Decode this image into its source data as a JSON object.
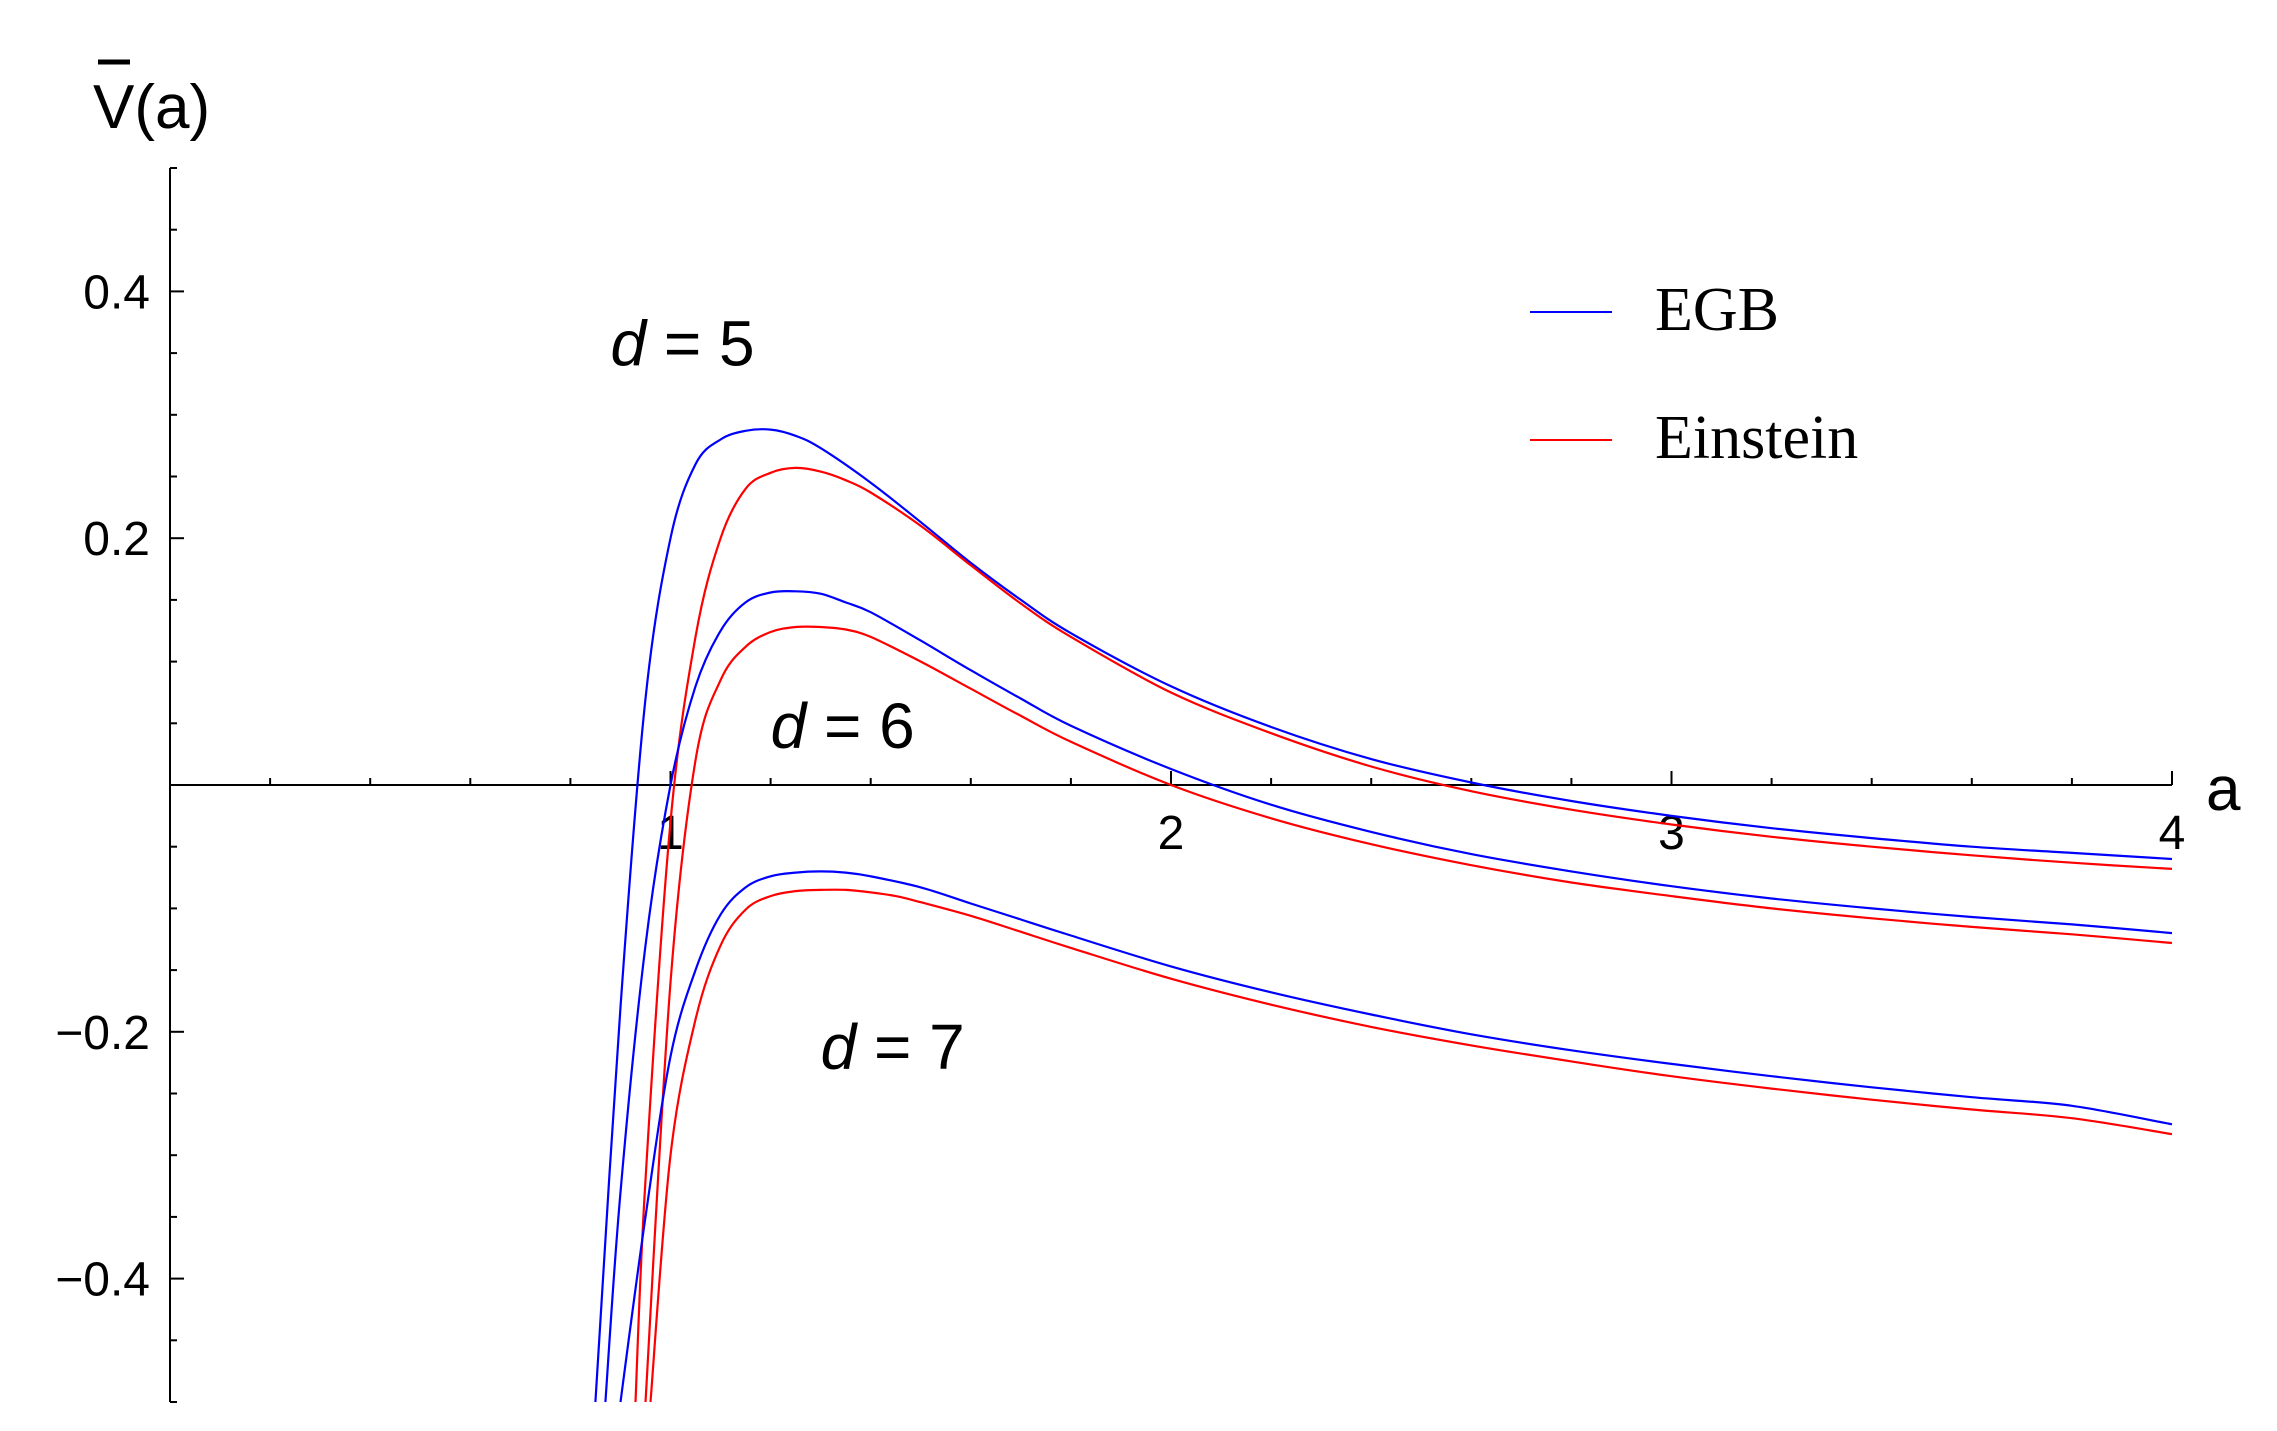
{
  "chart_data": {
    "type": "line",
    "xlabel": "a",
    "ylabel": "V(a)",
    "xlim": [
      0,
      4
    ],
    "ylim": [
      -0.5,
      0.5
    ],
    "grid": false,
    "legend_position": "top-right",
    "x_ticks": [
      {
        "value": 1,
        "label": "1"
      },
      {
        "value": 2,
        "label": "2"
      },
      {
        "value": 3,
        "label": "3"
      },
      {
        "value": 4,
        "label": "4"
      }
    ],
    "y_ticks": [
      {
        "value": 0.4,
        "label": "0.4"
      },
      {
        "value": 0.2,
        "label": "0.2"
      },
      {
        "value": -0.2,
        "label": "−0.2"
      },
      {
        "value": -0.4,
        "label": "−0.4"
      }
    ],
    "annotations": [
      {
        "var": "d",
        "text": " = 5",
        "x": 0.88,
        "y": 0.34
      },
      {
        "var": "d",
        "text": " = 6",
        "x": 1.2,
        "y": 0.03
      },
      {
        "var": "d",
        "text": " = 7",
        "x": 1.3,
        "y": -0.23
      }
    ],
    "legend": [
      {
        "label": "EGB",
        "color": "#0000ff"
      },
      {
        "label": "Einstein",
        "color": "#ff0000"
      }
    ],
    "series": [
      {
        "name": "EGB",
        "d": 5,
        "color": "#0000ff",
        "x": [
          0.85,
          0.9,
          0.95,
          1.0,
          1.05,
          1.1,
          1.15,
          1.2,
          1.25,
          1.3,
          1.4,
          1.5,
          1.6,
          1.7,
          1.8,
          2.0,
          2.2,
          2.4,
          2.6,
          2.8,
          3.0,
          3.2,
          3.4,
          3.6,
          3.8,
          4.0
        ],
        "y": [
          -0.5,
          -0.18,
          0.07,
          0.2,
          0.26,
          0.28,
          0.287,
          0.288,
          0.283,
          0.273,
          0.245,
          0.213,
          0.18,
          0.15,
          0.123,
          0.08,
          0.047,
          0.021,
          0.002,
          -0.013,
          -0.025,
          -0.035,
          -0.043,
          -0.05,
          -0.055,
          -0.06
        ]
      },
      {
        "name": "Einstein",
        "d": 5,
        "color": "#ff0000",
        "x": [
          0.93,
          0.95,
          1.0,
          1.05,
          1.1,
          1.15,
          1.2,
          1.25,
          1.3,
          1.35,
          1.4,
          1.5,
          1.6,
          1.7,
          1.8,
          2.0,
          2.2,
          2.4,
          2.6,
          2.8,
          3.0,
          3.2,
          3.4,
          3.6,
          3.8,
          4.0
        ],
        "y": [
          -0.5,
          -0.32,
          -0.03,
          0.12,
          0.2,
          0.24,
          0.253,
          0.257,
          0.254,
          0.247,
          0.237,
          0.21,
          0.178,
          0.147,
          0.12,
          0.075,
          0.042,
          0.015,
          -0.005,
          -0.02,
          -0.032,
          -0.042,
          -0.05,
          -0.057,
          -0.063,
          -0.068
        ]
      },
      {
        "name": "EGB",
        "d": 6,
        "color": "#0000ff",
        "x": [
          0.87,
          0.9,
          0.95,
          1.0,
          1.05,
          1.1,
          1.15,
          1.2,
          1.25,
          1.3,
          1.35,
          1.4,
          1.5,
          1.6,
          1.7,
          1.8,
          2.0,
          2.2,
          2.4,
          2.6,
          2.8,
          3.0,
          3.2,
          3.4,
          3.6,
          3.8,
          4.0
        ],
        "y": [
          -0.5,
          -0.33,
          -0.13,
          0.0,
          0.08,
          0.125,
          0.148,
          0.156,
          0.157,
          0.155,
          0.148,
          0.14,
          0.117,
          0.093,
          0.07,
          0.048,
          0.013,
          -0.016,
          -0.038,
          -0.056,
          -0.07,
          -0.082,
          -0.092,
          -0.1,
          -0.107,
          -0.113,
          -0.12
        ]
      },
      {
        "name": "Einstein",
        "d": 6,
        "color": "#ff0000",
        "x": [
          0.95,
          1.0,
          1.05,
          1.1,
          1.15,
          1.2,
          1.25,
          1.3,
          1.35,
          1.4,
          1.5,
          1.6,
          1.7,
          1.8,
          2.0,
          2.2,
          2.4,
          2.6,
          2.8,
          3.0,
          3.2,
          3.4,
          3.6,
          3.8,
          4.0
        ],
        "y": [
          -0.5,
          -0.16,
          0.02,
          0.085,
          0.112,
          0.124,
          0.128,
          0.128,
          0.126,
          0.12,
          0.1,
          0.078,
          0.056,
          0.035,
          0.0,
          -0.027,
          -0.048,
          -0.065,
          -0.079,
          -0.09,
          -0.1,
          -0.108,
          -0.115,
          -0.121,
          -0.128
        ]
      },
      {
        "name": "EGB",
        "d": 7,
        "color": "#0000ff",
        "x": [
          0.9,
          0.95,
          1.0,
          1.05,
          1.1,
          1.15,
          1.2,
          1.25,
          1.3,
          1.35,
          1.4,
          1.5,
          1.6,
          1.7,
          1.8,
          2.0,
          2.2,
          2.4,
          2.6,
          2.8,
          3.0,
          3.2,
          3.4,
          3.6,
          3.8,
          4.0
        ],
        "y": [
          -0.5,
          -0.35,
          -0.22,
          -0.15,
          -0.105,
          -0.083,
          -0.074,
          -0.071,
          -0.07,
          -0.071,
          -0.074,
          -0.083,
          -0.096,
          -0.109,
          -0.122,
          -0.147,
          -0.168,
          -0.186,
          -0.202,
          -0.215,
          -0.226,
          -0.236,
          -0.245,
          -0.253,
          -0.26,
          -0.275
        ]
      },
      {
        "name": "Einstein",
        "d": 7,
        "color": "#ff0000",
        "x": [
          0.96,
          1.0,
          1.05,
          1.1,
          1.15,
          1.2,
          1.25,
          1.3,
          1.35,
          1.4,
          1.45,
          1.5,
          1.6,
          1.7,
          1.8,
          2.0,
          2.2,
          2.4,
          2.6,
          2.8,
          3.0,
          3.2,
          3.4,
          3.6,
          3.8,
          4.0
        ],
        "y": [
          -0.5,
          -0.3,
          -0.19,
          -0.13,
          -0.101,
          -0.09,
          -0.086,
          -0.085,
          -0.085,
          -0.087,
          -0.09,
          -0.095,
          -0.106,
          -0.119,
          -0.132,
          -0.157,
          -0.178,
          -0.196,
          -0.211,
          -0.224,
          -0.236,
          -0.246,
          -0.255,
          -0.263,
          -0.27,
          -0.283
        ]
      }
    ]
  }
}
